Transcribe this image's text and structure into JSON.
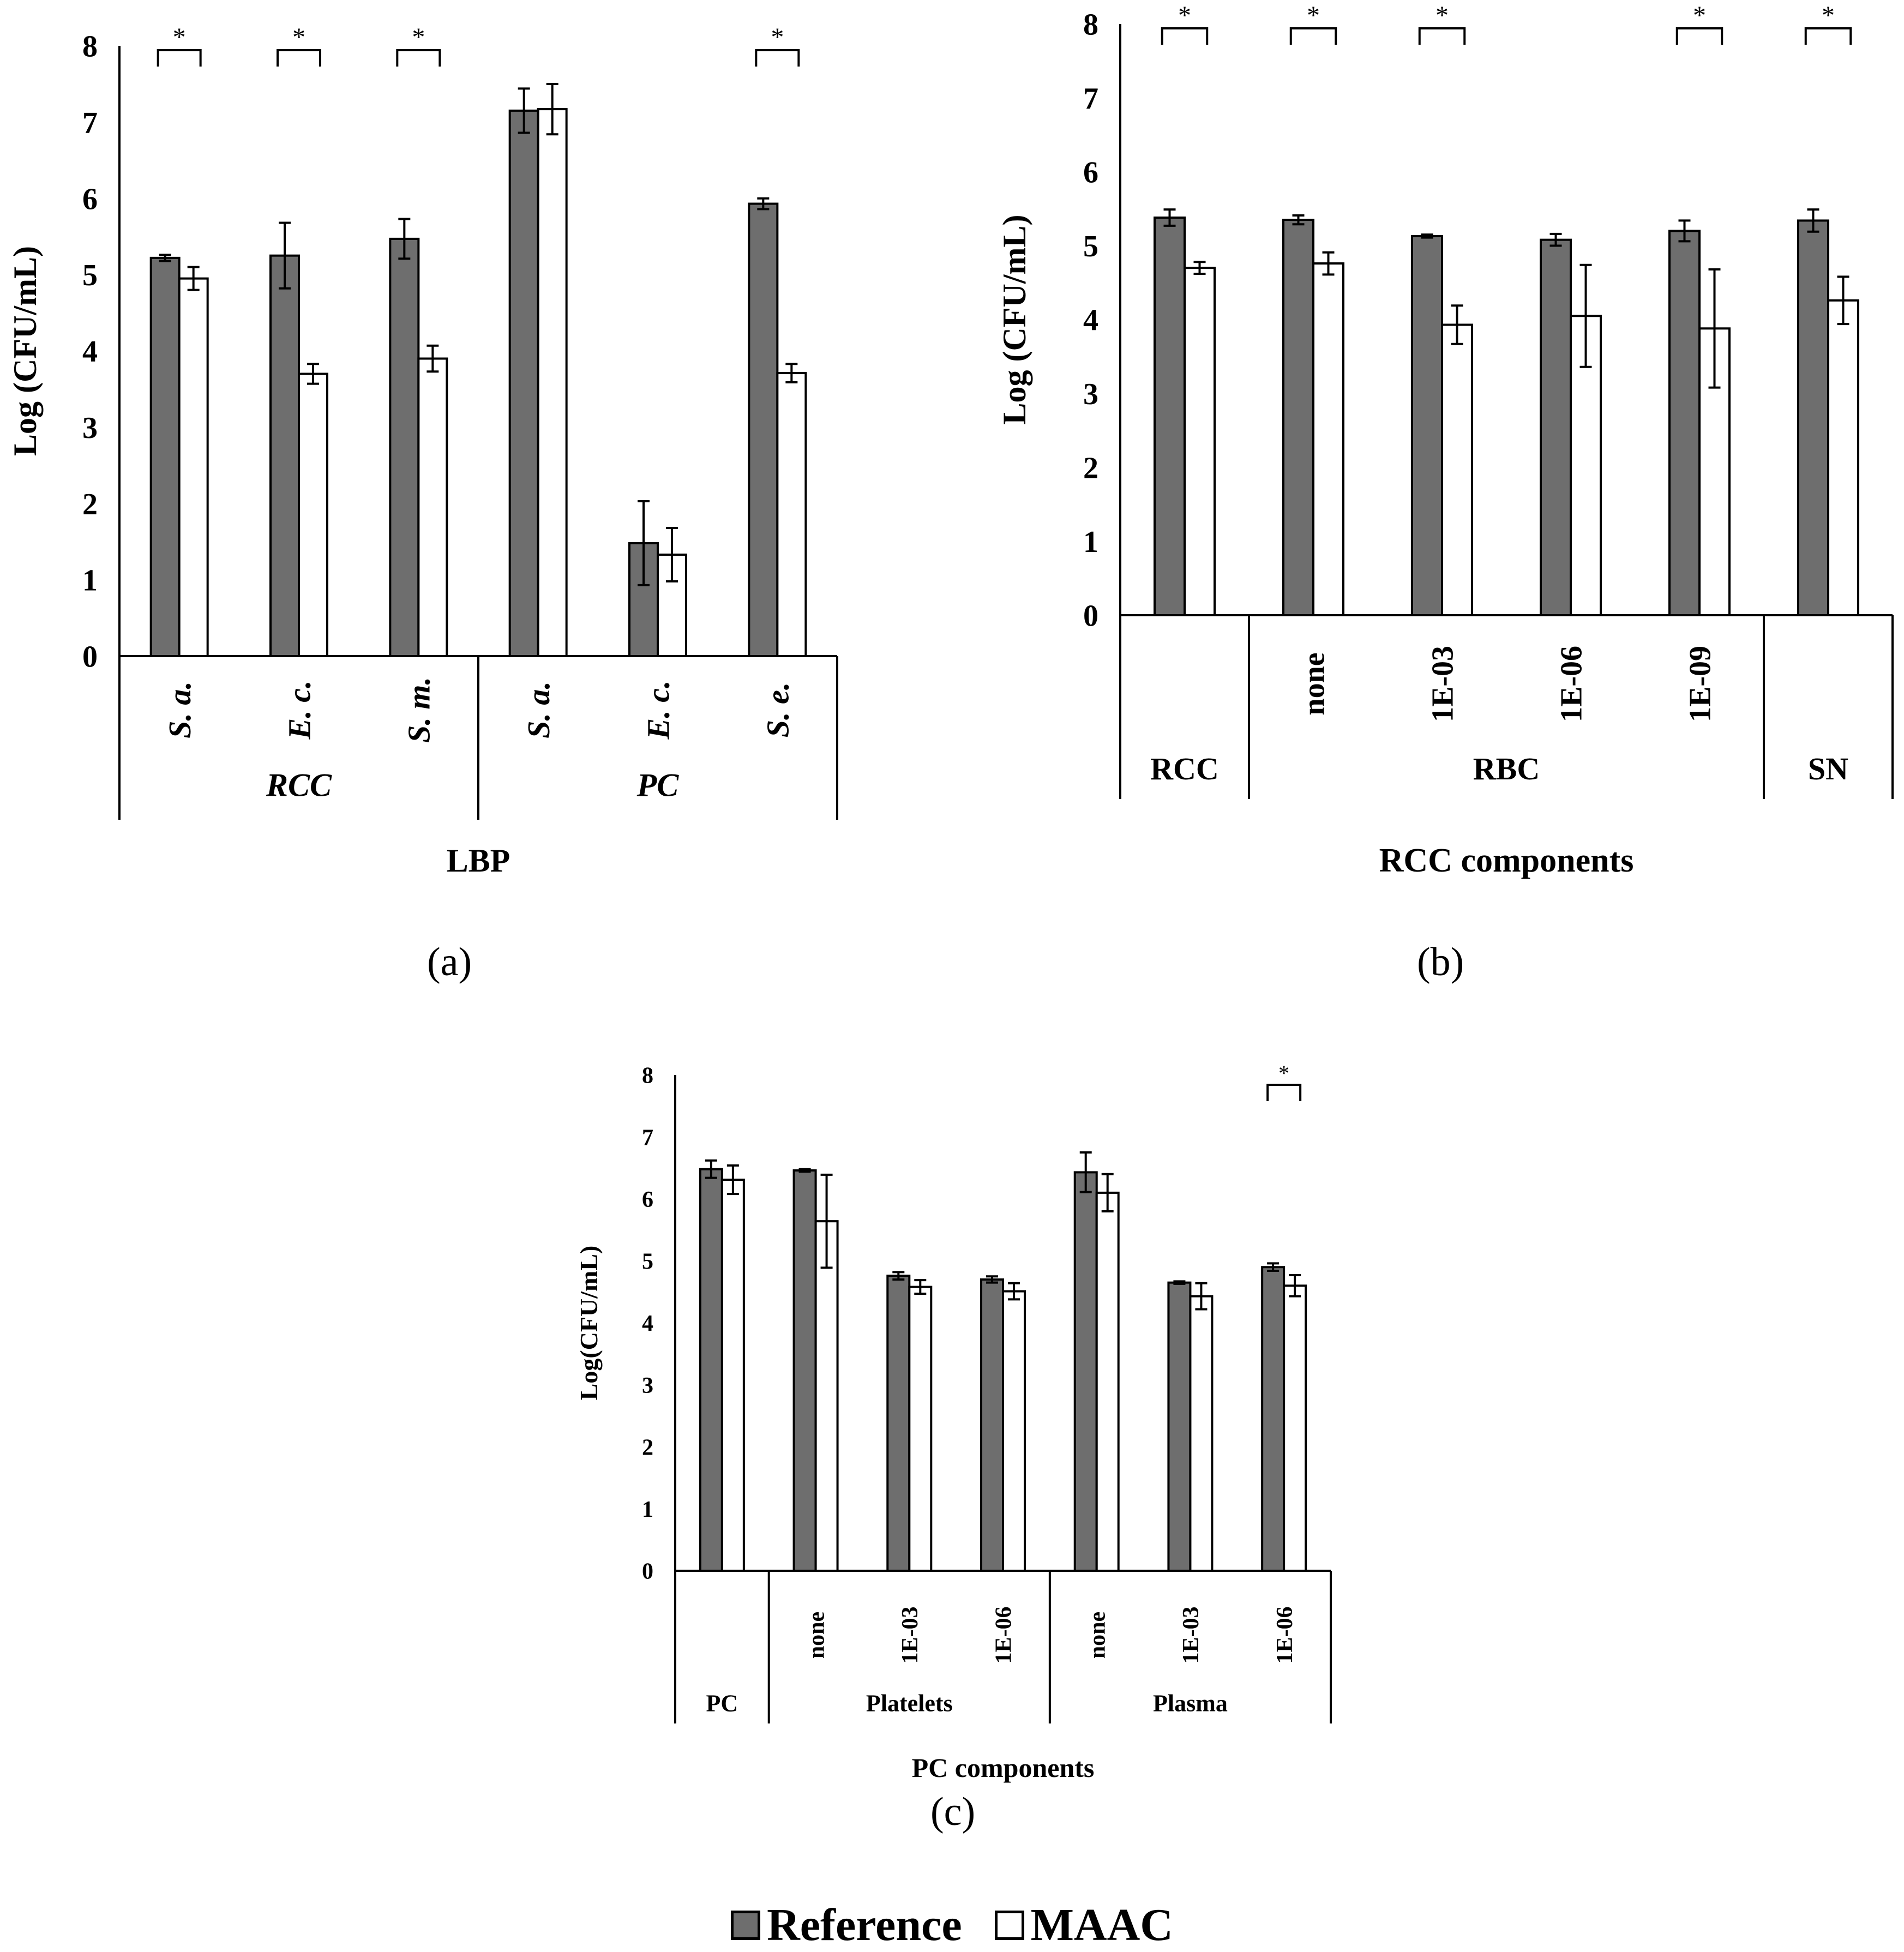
{
  "colors": {
    "reference": "#6e6e6e",
    "maac": "#ffffff",
    "stroke": "#000000"
  },
  "legend": {
    "reference_label": "Reference",
    "maac_label": "MAAC"
  },
  "chart_data": [
    {
      "panel": "(a)",
      "type": "bar",
      "title": "",
      "ylabel": "Log (CFU/mL)",
      "xlabel": "LBP",
      "ylim": [
        0,
        8
      ],
      "yticks": [
        "0",
        "1",
        "2",
        "3",
        "4",
        "5",
        "6",
        "7",
        "8"
      ],
      "categories": [
        "S. a.",
        "E. c.",
        "S. m.",
        "S. a.",
        "E. c.",
        "S. e."
      ],
      "category_italic": true,
      "groups": [
        {
          "label": "RCC",
          "span": 3
        },
        {
          "label": "PC",
          "span": 3
        }
      ],
      "group_italic": true,
      "series": [
        {
          "name": "Reference",
          "values": [
            5.22,
            5.25,
            5.47,
            7.15,
            1.48,
            5.93
          ],
          "errors": [
            0.04,
            0.43,
            0.26,
            0.29,
            0.55,
            0.07
          ]
        },
        {
          "name": "MAAC",
          "values": [
            4.95,
            3.7,
            3.9,
            7.17,
            1.33,
            3.71
          ],
          "errors": [
            0.15,
            0.13,
            0.17,
            0.33,
            0.35,
            0.12
          ]
        }
      ],
      "significance": [
        {
          "label": "*",
          "category_index": 0
        },
        {
          "label": "*",
          "category_index": 1
        },
        {
          "label": "*",
          "category_index": 2
        },
        {
          "label": "*",
          "category_index": 5
        }
      ]
    },
    {
      "panel": "(b)",
      "type": "bar",
      "title": "",
      "ylabel": "Log (CFU/mL)",
      "xlabel": "RCC components",
      "ylim": [
        0,
        8
      ],
      "yticks": [
        "0",
        "1",
        "2",
        "3",
        "4",
        "5",
        "6",
        "7",
        "8"
      ],
      "categories": [
        "",
        "none",
        "1E-03",
        "1E-06",
        "1E-09",
        ""
      ],
      "category_italic": false,
      "groups": [
        {
          "label": "RCC",
          "span": 1
        },
        {
          "label": "RBC",
          "span": 4
        },
        {
          "label": "SN",
          "span": 1
        }
      ],
      "group_italic": false,
      "series": [
        {
          "name": "Reference",
          "values": [
            5.38,
            5.35,
            5.13,
            5.08,
            5.2,
            5.34
          ],
          "errors": [
            0.11,
            0.06,
            0.02,
            0.08,
            0.14,
            0.15
          ]
        },
        {
          "name": "MAAC",
          "values": [
            4.7,
            4.76,
            3.93,
            4.05,
            3.88,
            4.26
          ],
          "errors": [
            0.08,
            0.15,
            0.26,
            0.69,
            0.8,
            0.32
          ]
        }
      ],
      "significance": [
        {
          "label": "*",
          "category_index": 0
        },
        {
          "label": "*",
          "category_index": 1
        },
        {
          "label": "*",
          "category_index": 2
        },
        {
          "label": "*",
          "category_index": 4
        },
        {
          "label": "*",
          "category_index": 5
        }
      ]
    },
    {
      "panel": "(c)",
      "type": "bar",
      "title": "",
      "ylabel": "Log(CFU/mL)",
      "xlabel": "PC components",
      "ylim": [
        0,
        8
      ],
      "yticks": [
        "0",
        "1",
        "2",
        "3",
        "4",
        "5",
        "6",
        "7",
        "8"
      ],
      "categories": [
        "",
        "none",
        "1E-03",
        "1E-06",
        "none",
        "1E-03",
        "1E-06"
      ],
      "category_italic": false,
      "groups": [
        {
          "label": "PC",
          "span": 1
        },
        {
          "label": "Platelets",
          "span": 3
        },
        {
          "label": "Plasma",
          "span": 3
        }
      ],
      "group_italic": false,
      "series": [
        {
          "name": "Reference",
          "values": [
            6.48,
            6.46,
            4.76,
            4.7,
            6.43,
            4.65,
            4.9
          ],
          "errors": [
            0.14,
            0.02,
            0.06,
            0.05,
            0.32,
            0.02,
            0.06
          ]
        },
        {
          "name": "MAAC",
          "values": [
            6.31,
            5.64,
            4.58,
            4.51,
            6.1,
            4.43,
            4.6
          ],
          "errors": [
            0.23,
            0.75,
            0.11,
            0.13,
            0.3,
            0.21,
            0.17
          ]
        }
      ],
      "significance": [
        {
          "label": "*",
          "category_index": 6
        }
      ]
    }
  ]
}
